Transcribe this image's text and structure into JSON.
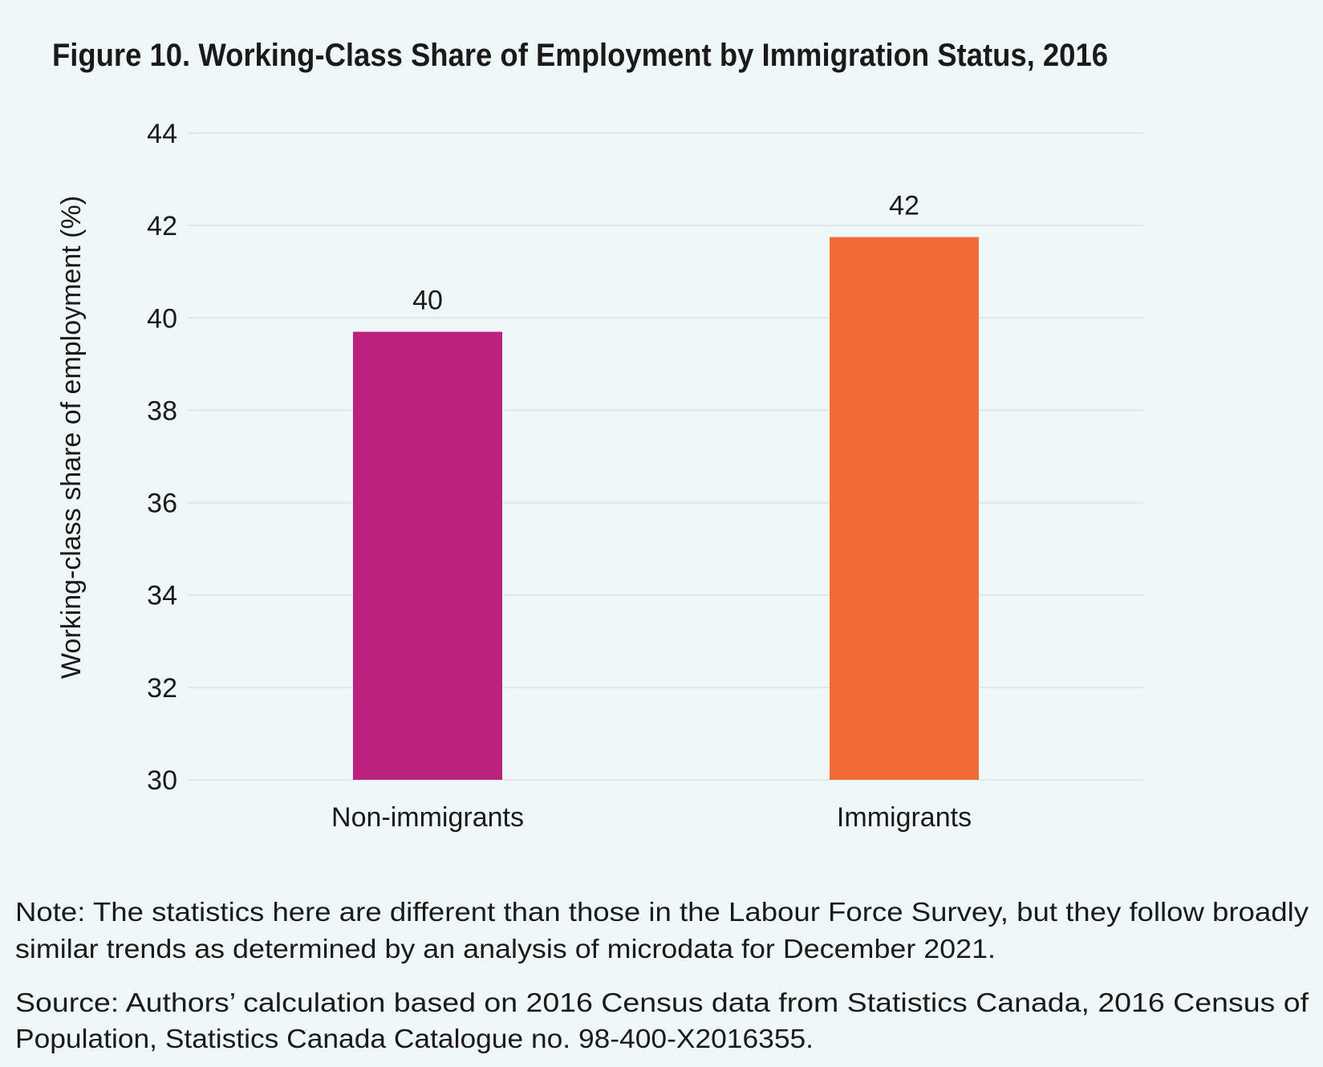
{
  "chart_data": {
    "type": "bar",
    "title": "Figure 10. Working-Class Share of Employment by Immigration Status, 2016",
    "xlabel": "",
    "ylabel": "Working-class share of employment  (%)",
    "ylim": [
      30,
      44
    ],
    "yticks": [
      30,
      32,
      34,
      36,
      38,
      40,
      42,
      44
    ],
    "ytick_labels": [
      "30",
      "32",
      "34",
      "36",
      "38",
      "40",
      "42",
      "44"
    ],
    "grid": true,
    "categories": [
      "Non-immigrants",
      "Immigrants"
    ],
    "values": [
      39.7,
      41.75
    ],
    "data_labels": [
      "40",
      "42"
    ],
    "colors": [
      "#bb217d",
      "#f26b35"
    ]
  },
  "notes": {
    "note_line1": "Note: The statistics here are different than those in the Labour Force Survey, but they follow broadly",
    "note_line2": "similar trends as determined by an analysis of microdata for December 2021.",
    "source_line1": "Source: Authors’ calculation based on 2016 Census data from Statistics Canada, 2016 Census of",
    "source_line2": "Population, Statistics Canada Catalogue no. 98-400-X2016355."
  }
}
